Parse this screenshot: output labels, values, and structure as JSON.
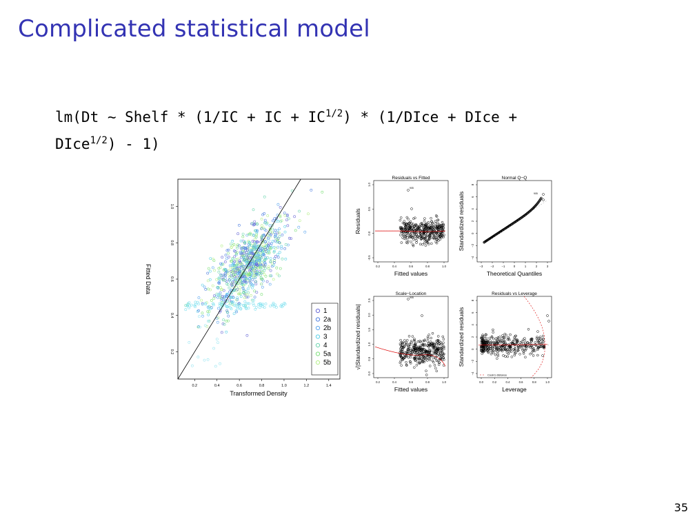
{
  "slide": {
    "title": "Complicated statistical model",
    "formula_line1": "lm(Dt ∼ Shelf * (1/IC + IC + IC",
    "formula_sup": "1/2",
    "formula_line1_end": ") * (1/DIce + DIce +",
    "formula_line2": "DIce",
    "formula_line2_end": ") - 1)",
    "page_number": "35"
  },
  "chart_data": [
    {
      "type": "scatter",
      "title": "",
      "xlabel": "Transformed Density",
      "ylabel": "Fitted Data",
      "xticks": [
        "0.2",
        "0.4",
        "0.6",
        "0.8",
        "1.0",
        "1.2",
        "1.4"
      ],
      "yticks": [
        "0.2",
        "0.4",
        "0.6",
        "0.8",
        "1.0"
      ],
      "xlim": [
        0.05,
        1.5
      ],
      "ylim": [
        0.05,
        1.15
      ],
      "legend": {
        "placement": "bottom-right",
        "entries": [
          "1",
          "2a",
          "2b",
          "3",
          "4",
          "5a",
          "5b"
        ]
      },
      "series_colors": [
        "#6b6bd6",
        "#4f7fe0",
        "#5fa8f0",
        "#5ad0e8",
        "#6fd6b0",
        "#7ee07a",
        "#b6ef8a"
      ],
      "reference_line": "y = x"
    },
    {
      "type": "scatter",
      "title": "Residuals vs Fitted",
      "xlabel": "Fitted values",
      "ylabel": "Residuals",
      "xticks": [
        "0.2",
        "0.4",
        "0.6",
        "0.8",
        "1.0"
      ],
      "yticks": [
        "-0.5",
        "0.0",
        "0.5",
        "1.0"
      ],
      "point_labels": [
        "905",
        "2318",
        "2529"
      ]
    },
    {
      "type": "scatter",
      "title": "Normal Q−Q",
      "xlabel": "Theoretical Quantiles",
      "ylabel": "Standardized residuals",
      "xticks": [
        "−3",
        "−2",
        "−1",
        "0",
        "1",
        "2",
        "3"
      ],
      "yticks": [
        "−4",
        "−2",
        "0",
        "2",
        "4",
        "6",
        "8"
      ],
      "point_labels": [
        "905",
        "2318",
        "2529"
      ]
    },
    {
      "type": "scatter",
      "title": "Scale−Location",
      "xlabel": "Fitted values",
      "ylabel": "√|Standardized residuals|",
      "xticks": [
        "0.2",
        "0.4",
        "0.6",
        "0.8",
        "1.0"
      ],
      "yticks": [
        "0.0",
        "0.5",
        "1.0",
        "1.5",
        "2.0",
        "2.5"
      ],
      "point_labels": [
        "905",
        "2318",
        "2529"
      ]
    },
    {
      "type": "scatter",
      "title": "Residuals vs Leverage",
      "xlabel": "Leverage",
      "ylabel": "Standardized residuals",
      "xticks": [
        "0.0",
        "0.2",
        "0.4",
        "0.6",
        "0.8",
        "1.0"
      ],
      "yticks": [
        "−4",
        "−2",
        "0",
        "2",
        "4",
        "6",
        "8"
      ],
      "legend": {
        "placement": "bottom-left",
        "entries": [
          "Cook's distance"
        ]
      },
      "point_labels": [
        "905",
        "2318",
        "2529"
      ]
    }
  ]
}
